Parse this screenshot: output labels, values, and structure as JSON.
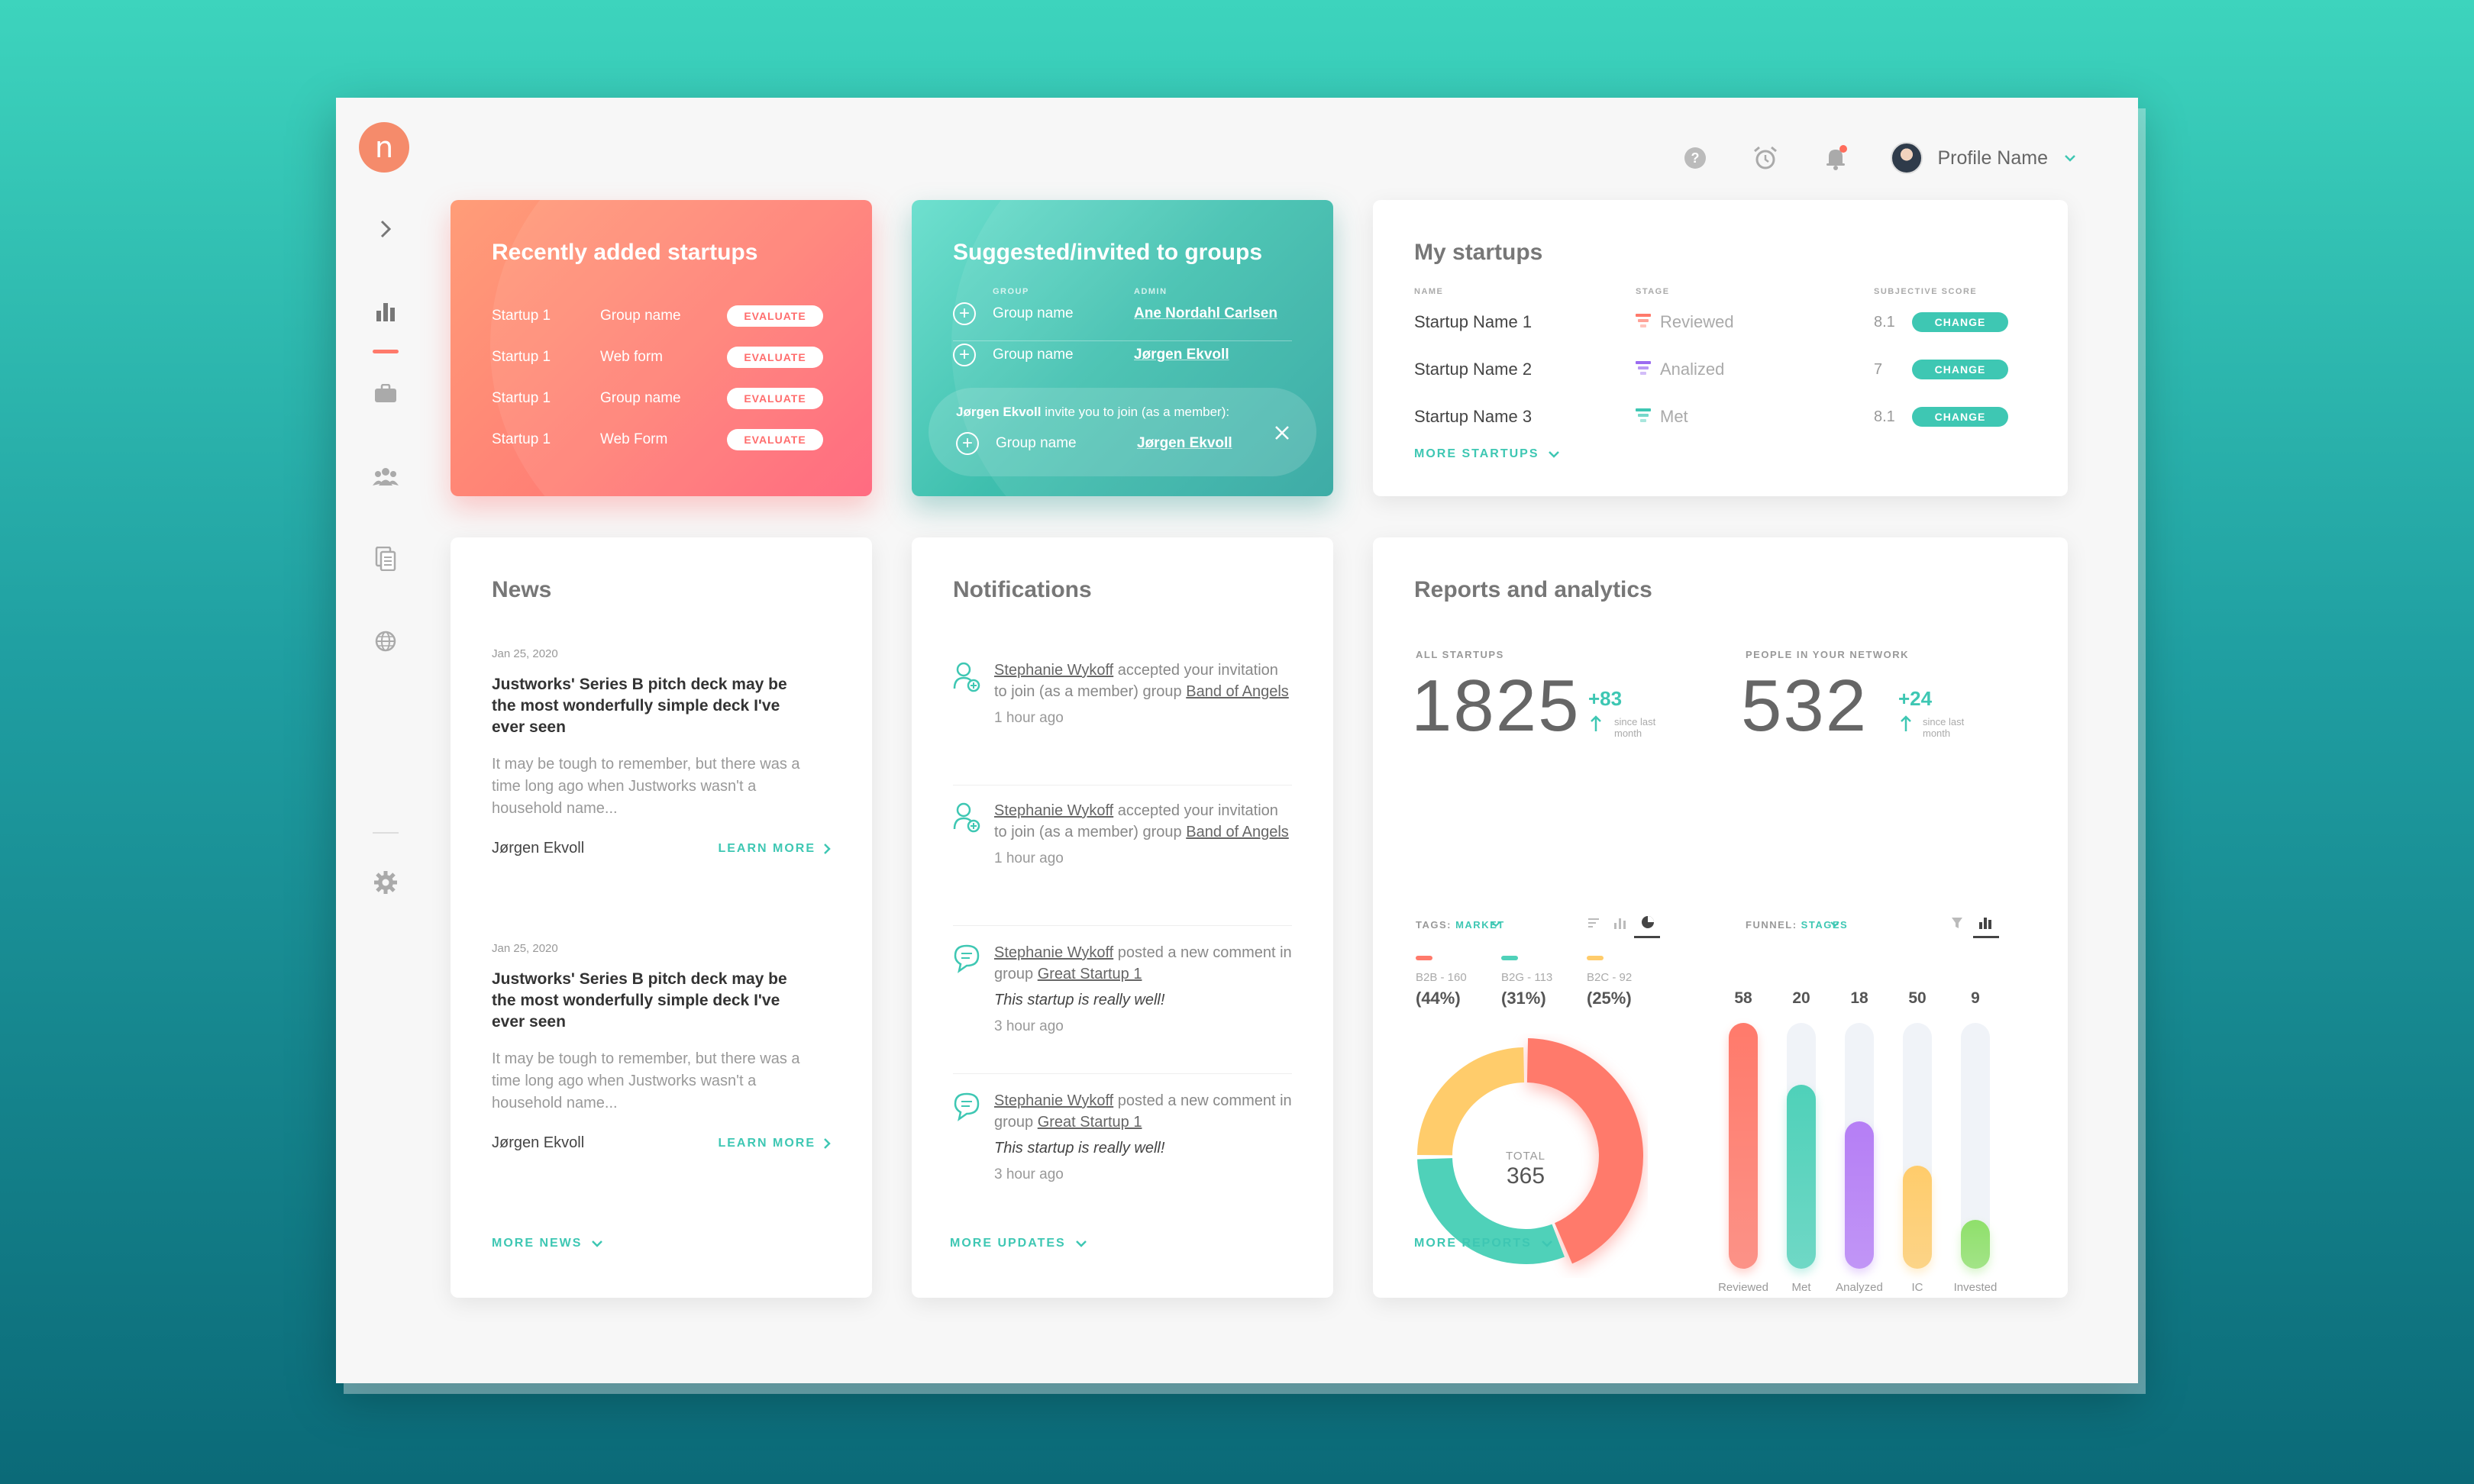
{
  "app": {
    "logo_letter": "n"
  },
  "sidebar": {
    "icons": [
      "chevron-right-icon",
      "bar-chart-icon",
      "briefcase-icon",
      "people-icon",
      "documents-icon",
      "globe-icon",
      "gear-icon"
    ]
  },
  "header": {
    "profile_name": "Profile Name"
  },
  "recent": {
    "title": "Recently added startups",
    "rows": [
      {
        "startup": "Startup 1",
        "source": "Group name",
        "action": "EVALUATE"
      },
      {
        "startup": "Startup 1",
        "source": "Web form",
        "action": "EVALUATE"
      },
      {
        "startup": "Startup 1",
        "source": "Group name",
        "action": "EVALUATE"
      },
      {
        "startup": "Startup 1",
        "source": "Web Form",
        "action": "EVALUATE"
      }
    ]
  },
  "suggested": {
    "title": "Suggested/invited to groups",
    "col_group": "GROUP",
    "col_admin": "ADMIN",
    "rows": [
      {
        "group": "Group name",
        "admin": "Ane Nordahl Carlsen"
      },
      {
        "group": "Group name",
        "admin": "Jørgen Ekvoll"
      }
    ],
    "invite": {
      "inviter": "Jørgen Ekvoll",
      "text": " invite you to join (as a member):",
      "group": "Group name",
      "admin": "Jørgen Ekvoll"
    }
  },
  "my_startups": {
    "title": "My startups",
    "col_name": "NAME",
    "col_stage": "STAGE",
    "col_score": "SUBJECTIVE SCORE",
    "rows": [
      {
        "name": "Startup Name 1",
        "stage": "Reviewed",
        "score": "8.1",
        "action": "CHANGE",
        "color": "#ff7a6b"
      },
      {
        "name": "Startup Name 2",
        "stage": "Analized",
        "score": "7",
        "action": "CHANGE",
        "color": "#9b6cf0"
      },
      {
        "name": "Startup Name 3",
        "stage": "Met",
        "score": "8.1",
        "action": "CHANGE",
        "color": "#3ec7b3"
      }
    ],
    "more": "MORE STARTUPS"
  },
  "news": {
    "title": "News",
    "items": [
      {
        "date": "Jan 25, 2020",
        "headline": "Justworks' Series B pitch deck may be the most wonderfully simple deck I've ever seen",
        "body": "It may be tough to remember, but there was a time long ago when Justworks wasn't a household name...",
        "author": "Jørgen Ekvoll",
        "link": "LEARN MORE"
      },
      {
        "date": "Jan 25, 2020",
        "headline": "Justworks' Series B pitch deck may be the most wonderfully simple deck I've ever seen",
        "body": "It may be tough to remember, but there was a time long ago when Justworks wasn't a household name...",
        "author": "Jørgen Ekvoll",
        "link": "LEARN MORE"
      }
    ],
    "more": "MORE NEWS"
  },
  "notifications": {
    "title": "Notifications",
    "items": [
      {
        "icon": "user-add-icon",
        "name": "Stephanie Wykoff",
        "pre": " accepted your invitation to join (as a member) group ",
        "target": "Band of Angels",
        "quote": "",
        "time": "1 hour ago"
      },
      {
        "icon": "user-add-icon",
        "name": "Stephanie Wykoff",
        "pre": " accepted your invitation to join (as a member) group ",
        "target": "Band of Angels",
        "quote": "",
        "time": "1 hour ago"
      },
      {
        "icon": "comment-icon",
        "name": "Stephanie Wykoff",
        "pre": " posted a new comment in group ",
        "target": "Great Startup 1",
        "quote": "This startup is really well!",
        "time": "3 hour ago"
      },
      {
        "icon": "comment-icon",
        "name": "Stephanie Wykoff",
        "pre": " posted a new comment in group ",
        "target": "Great Startup 1",
        "quote": "This startup is really well!",
        "time": "3 hour ago"
      }
    ],
    "more": "MORE UPDATES"
  },
  "reports": {
    "title": "Reports and analytics",
    "all_startups": {
      "label": "ALL STARTUPS",
      "value": "1825",
      "delta": "+83",
      "since": "since last month"
    },
    "network": {
      "label": "PEOPLE IN YOUR NETWORK",
      "value": "532",
      "delta": "+24",
      "since": "since last month"
    },
    "tags": {
      "label": "TAGS: ",
      "selected": "MARKET"
    },
    "funnel": {
      "label": "FUNNEL: ",
      "selected": "STAGES"
    },
    "more": "MORE REPORTS"
  },
  "chart_data": [
    {
      "type": "pie",
      "title": "",
      "center_label": "TOTAL",
      "center_value": "365",
      "slices": [
        {
          "label": "B2B - 160",
          "value": 160,
          "pct": "(44%)",
          "color": "#ff7a6b"
        },
        {
          "label": "B2G - 113",
          "value": 113,
          "pct": "(31%)",
          "color": "#4fd1b9"
        },
        {
          "label": "B2C - 92",
          "value": 92,
          "pct": "(25%)",
          "color": "#ffcc6b"
        }
      ]
    },
    {
      "type": "bar",
      "title": "",
      "categories": [
        "Reviewed",
        "Met",
        "Analyzed",
        "IC",
        "Invested"
      ],
      "values": [
        58,
        20,
        18,
        50,
        9
      ],
      "fill_fraction": [
        1.0,
        0.75,
        0.6,
        0.42,
        0.2
      ],
      "colors": [
        "#ff7a6b",
        "#4fd1b9",
        "#b57ef5",
        "#ffcc6b",
        "#8fe06b"
      ]
    }
  ]
}
